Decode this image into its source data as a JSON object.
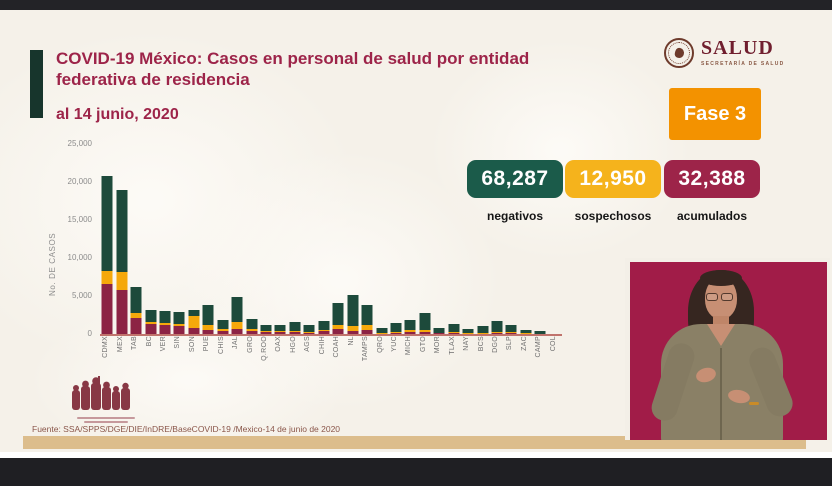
{
  "slide": {
    "title": "COVID-19 México: Casos en personal de salud por entidad federativa de residencia",
    "subtitle": "al 14 junio, 2020",
    "logo": {
      "name": "SALUD",
      "sub": "SECRETARÍA DE SALUD"
    },
    "phase_badge": "Fase 3",
    "phase_badge_color": "#f39200",
    "stats": [
      {
        "value": "68,287",
        "label": "negativos",
        "color": "#1b5b4a"
      },
      {
        "value": "12,950",
        "label": "sospechosos",
        "color": "#f5b31c"
      },
      {
        "value": "32,388",
        "label": "acumulados",
        "color": "#9d2449"
      }
    ],
    "source": "Fuente: SSA/SPPS/DGE/DIE/InDRE/BaseCOVID-19 /Mexico-14 de junio de 2020",
    "background_color": "#f5f1e9",
    "accent_color": "#17352c",
    "title_color": "#9d2449"
  },
  "chart_data": {
    "type": "bar",
    "stacked": true,
    "title": "",
    "xlabel": "",
    "ylabel": "No. DE CASOS",
    "ylim": [
      0,
      25000
    ],
    "yticks": [
      "25,000",
      "20,000",
      "15,000",
      "10,000",
      "5,000",
      "0"
    ],
    "grid": false,
    "legend": "none",
    "categories": [
      "CDMX",
      "MEX",
      "TAB",
      "BC",
      "VER",
      "SIN",
      "SON",
      "PUE",
      "CHIS",
      "JAL",
      "GRO",
      "Q.ROO",
      "OAX",
      "HGO",
      "AGS",
      "CHIH",
      "COAH",
      "NL",
      "TAMPS",
      "QRO",
      "YUC",
      "MICH",
      "GTO",
      "MOR",
      "TLAX",
      "NAY",
      "BCS",
      "DGO",
      "SLP",
      "ZAC",
      "CAMP",
      "COL"
    ],
    "series": [
      {
        "name": "acumulados",
        "color": "#8c2344",
        "values": [
          6800,
          6100,
          2400,
          1600,
          1500,
          1300,
          1100,
          800,
          700,
          900,
          700,
          500,
          500,
          500,
          350,
          600,
          900,
          600,
          800,
          300,
          400,
          550,
          500,
          350,
          400,
          300,
          250,
          350,
          400,
          250,
          200,
          100
        ]
      },
      {
        "name": "sospechosos",
        "color": "#f5a80b",
        "values": [
          1700,
          2300,
          600,
          300,
          250,
          250,
          1500,
          600,
          200,
          1000,
          200,
          150,
          150,
          200,
          150,
          250,
          500,
          700,
          650,
          100,
          200,
          200,
          300,
          100,
          150,
          100,
          150,
          200,
          200,
          100,
          80,
          50
        ]
      },
      {
        "name": "negativos",
        "color": "#1d4a3b",
        "values": [
          12500,
          10800,
          3400,
          1500,
          1550,
          1650,
          800,
          2700,
          1200,
          3200,
          1300,
          850,
          750,
          1200,
          900,
          1150,
          2900,
          4100,
          2650,
          700,
          1100,
          1350,
          2200,
          550,
          1050,
          500,
          900,
          1450,
          850,
          450,
          370,
          150
        ]
      }
    ]
  }
}
